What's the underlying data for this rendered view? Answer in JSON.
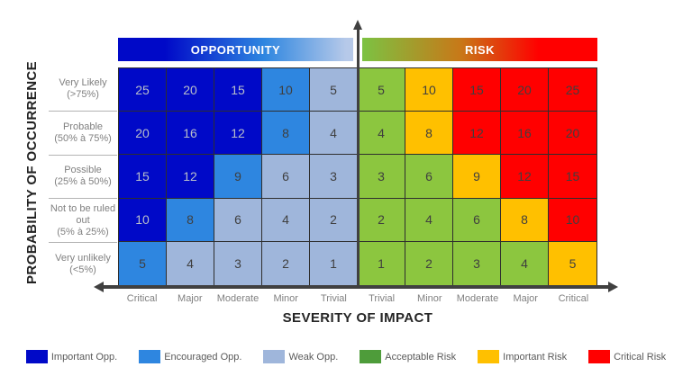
{
  "header": {
    "opportunity_label": "OPPORTUNITY",
    "risk_label": "RISK"
  },
  "palette": {
    "important_opp": "#0009C8",
    "encouraged_opp": "#2E86E0",
    "weak_opp": "#9FB6DB",
    "acceptable_risk": "#8CC63F",
    "important_risk": "#FFC000",
    "critical_risk": "#FF0000",
    "opportunity_gradient_start": "#0009C8",
    "opportunity_gradient_mid": "#2E86E0",
    "opportunity_gradient_end": "#B6C9E9",
    "risk_gradient_start": "#7CC242",
    "risk_gradient_mid": "#C87818",
    "risk_gradient_end": "#FF0000",
    "axis": "#404040",
    "cell_text_light": "#B9BFCA",
    "cell_text_dark": "#3F3F3F"
  },
  "chart_data": {
    "type": "heatmap",
    "title": "Opportunity / Risk assessment matrix",
    "xlabel": "SEVERITY OF IMPACT",
    "ylabel": "PROBABILITY OF OCCURRENCE",
    "sections": [
      {
        "name": "OPPORTUNITY",
        "columns": [
          "Critical",
          "Major",
          "Moderate",
          "Minor",
          "Trivial"
        ]
      },
      {
        "name": "RISK",
        "columns": [
          "Trivial",
          "Minor",
          "Moderate",
          "Major",
          "Critical"
        ]
      }
    ],
    "column_labels": [
      "Critical",
      "Major",
      "Moderate",
      "Minor",
      "Trivial",
      "Trivial",
      "Minor",
      "Moderate",
      "Major",
      "Critical"
    ],
    "rows": [
      {
        "label": "Very Likely",
        "sublabel": "(>75%)",
        "values": [
          25,
          20,
          15,
          10,
          5,
          5,
          10,
          15,
          20,
          25
        ],
        "cell_types": [
          "important_opp",
          "important_opp",
          "important_opp",
          "encouraged_opp",
          "weak_opp",
          "acceptable_risk",
          "important_risk",
          "critical_risk",
          "critical_risk",
          "critical_risk"
        ]
      },
      {
        "label": "Probable",
        "sublabel": "(50% à 75%)",
        "values": [
          20,
          16,
          12,
          8,
          4,
          4,
          8,
          12,
          16,
          20
        ],
        "cell_types": [
          "important_opp",
          "important_opp",
          "important_opp",
          "encouraged_opp",
          "weak_opp",
          "acceptable_risk",
          "important_risk",
          "critical_risk",
          "critical_risk",
          "critical_risk"
        ]
      },
      {
        "label": "Possible",
        "sublabel": "(25% à 50%)",
        "values": [
          15,
          12,
          9,
          6,
          3,
          3,
          6,
          9,
          12,
          15
        ],
        "cell_types": [
          "important_opp",
          "important_opp",
          "encouraged_opp",
          "weak_opp",
          "weak_opp",
          "acceptable_risk",
          "acceptable_risk",
          "important_risk",
          "critical_risk",
          "critical_risk"
        ]
      },
      {
        "label": "Not to be ruled out",
        "sublabel": "(5% à 25%)",
        "values": [
          10,
          8,
          6,
          4,
          2,
          2,
          4,
          6,
          8,
          10
        ],
        "cell_types": [
          "important_opp",
          "encouraged_opp",
          "weak_opp",
          "weak_opp",
          "weak_opp",
          "acceptable_risk",
          "acceptable_risk",
          "acceptable_risk",
          "important_risk",
          "critical_risk"
        ]
      },
      {
        "label": "Very unlikely",
        "sublabel": "(<5%)",
        "values": [
          5,
          4,
          3,
          2,
          1,
          1,
          2,
          3,
          4,
          5
        ],
        "cell_types": [
          "encouraged_opp",
          "weak_opp",
          "weak_opp",
          "weak_opp",
          "weak_opp",
          "acceptable_risk",
          "acceptable_risk",
          "acceptable_risk",
          "acceptable_risk",
          "important_risk"
        ]
      }
    ],
    "legend": [
      {
        "label": "Important Opp.",
        "color": "#0009C8"
      },
      {
        "label": "Encouraged Opp.",
        "color": "#2E86E0"
      },
      {
        "label": "Weak Opp.",
        "color": "#9FB6DB"
      },
      {
        "label": "Acceptable Risk",
        "color": "#4E9C3A"
      },
      {
        "label": "Important Risk",
        "color": "#FFC000"
      },
      {
        "label": "Critical Risk",
        "color": "#FF0000"
      }
    ],
    "legend_position": "bottom",
    "grid": true
  }
}
